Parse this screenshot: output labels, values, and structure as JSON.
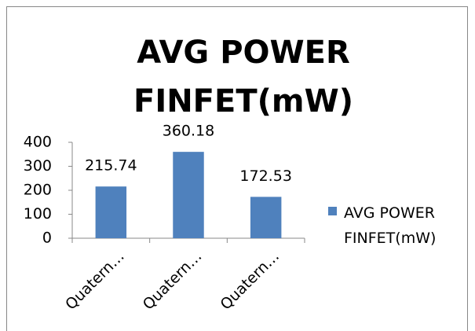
{
  "chart_data": {
    "type": "bar",
    "title": "AVG POWER FINFET(mW)",
    "categories": [
      "Quatern…",
      "Quatern…",
      "Quatern…"
    ],
    "series": [
      {
        "name": "AVG POWER FINFET(mW)",
        "color": "#4f81bd",
        "values": [
          215.74,
          360.18,
          172.53
        ]
      }
    ],
    "ylim": [
      0,
      400
    ],
    "yticks": [
      0,
      100,
      200,
      300,
      400
    ],
    "grid": false,
    "legend": "right"
  }
}
